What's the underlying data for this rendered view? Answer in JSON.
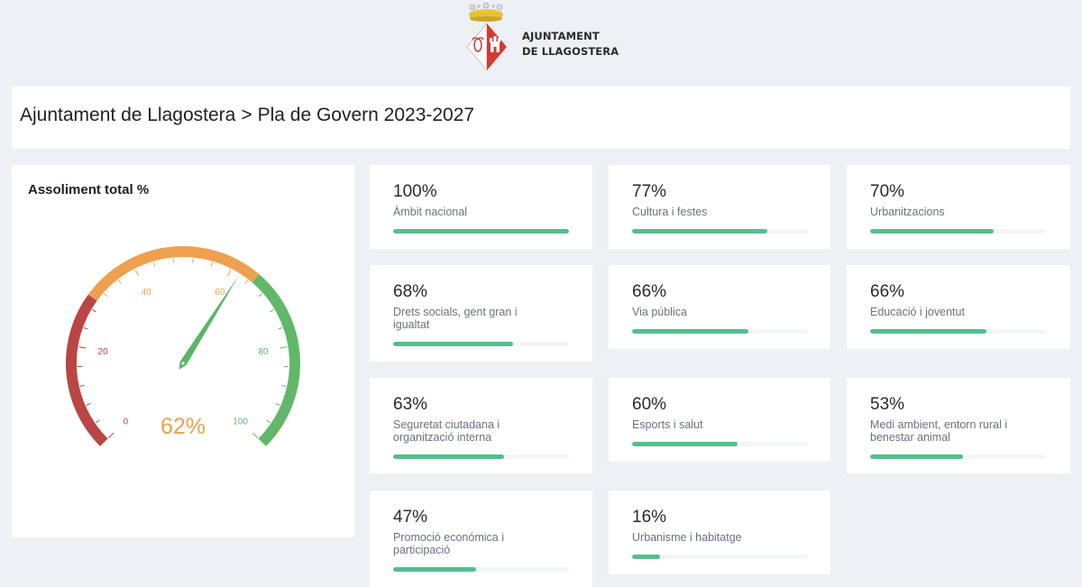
{
  "logo": {
    "line1": "AJUNTAMENT",
    "line2": "DE LLAGOSTERA",
    "colors": {
      "crown": "#e8c93a",
      "shield_red": "#d43b30",
      "text": "#2a2a2a"
    }
  },
  "header": {
    "breadcrumb_root": "Ajuntament de Llagostera",
    "separator": ">",
    "breadcrumb_current": "Pla de Govern 2023-2027"
  },
  "gauge": {
    "title": "Assoliment total %",
    "value": 62,
    "value_label": "62%",
    "min": 0,
    "max": 100,
    "ticks": [
      "0",
      "20",
      "40",
      "60",
      "80",
      "100"
    ],
    "bands": [
      {
        "from": 0,
        "to": 30,
        "color": "#b94642"
      },
      {
        "from": 30,
        "to": 65,
        "color": "#eea04e"
      },
      {
        "from": 65,
        "to": 100,
        "color": "#63b76a"
      }
    ],
    "needle_color": "#5bb566"
  },
  "cards": [
    {
      "pct": "100%",
      "value": 100,
      "label": "Àmbit nacional"
    },
    {
      "pct": "77%",
      "value": 77,
      "label": "Cultura i festes"
    },
    {
      "pct": "70%",
      "value": 70,
      "label": "Urbanitzacions"
    },
    {
      "pct": "68%",
      "value": 68,
      "label": "Drets socials, gent gran i igualtat"
    },
    {
      "pct": "66%",
      "value": 66,
      "label": "Via pública"
    },
    {
      "pct": "66%",
      "value": 66,
      "label": "Educació i joventut"
    },
    {
      "pct": "63%",
      "value": 63,
      "label": "Seguretat ciutadana i organització interna"
    },
    {
      "pct": "60%",
      "value": 60,
      "label": "Esports i salut"
    },
    {
      "pct": "53%",
      "value": 53,
      "label": "Medi ambient, entorn rural i benestar animal"
    },
    {
      "pct": "47%",
      "value": 47,
      "label": "Promoció económica i participació"
    },
    {
      "pct": "16%",
      "value": 16,
      "label": "Urbanisme i habitatge"
    }
  ],
  "colors": {
    "background": "#edf0f5",
    "progress_fill": "#55be8f",
    "progress_track": "#f3f5f7"
  }
}
